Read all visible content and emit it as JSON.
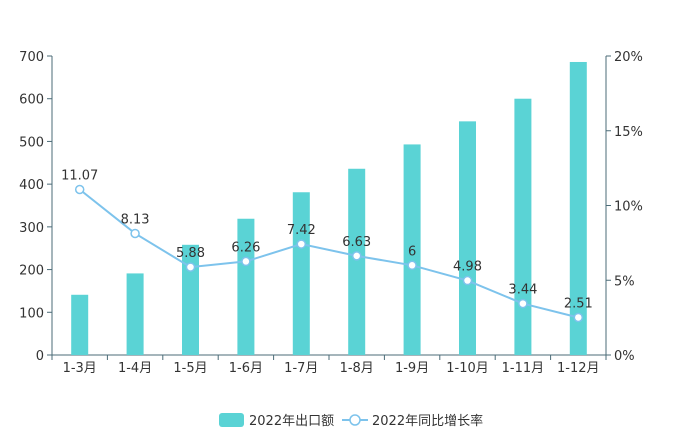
{
  "chart_data": {
    "type": "bar",
    "categories": [
      "1-3月",
      "1-4月",
      "1-5月",
      "1-6月",
      "1-7月",
      "1-8月",
      "1-9月",
      "1-10月",
      "1-11月",
      "1-12月"
    ],
    "series": [
      {
        "name": "2022年出口额",
        "type": "bar",
        "axis": "left",
        "values": [
          141,
          191,
          258,
          319,
          381,
          436,
          493,
          547,
          600,
          686
        ],
        "color": "#5ad3d5"
      },
      {
        "name": "2022年同比增长率",
        "type": "line",
        "axis": "right",
        "values": [
          11.07,
          8.13,
          5.88,
          6.26,
          7.42,
          6.63,
          6,
          4.98,
          3.44,
          2.51
        ],
        "labels": [
          "11.07",
          "8.13",
          "5.88",
          "6.26",
          "7.42",
          "6.63",
          "6",
          "4.98",
          "3.44",
          "2.51"
        ],
        "color": "#7dc3ec"
      }
    ],
    "y_left": {
      "min": 0,
      "max": 700,
      "ticks": [
        "0",
        "100",
        "200",
        "300",
        "400",
        "500",
        "600",
        "700"
      ]
    },
    "y_right": {
      "min": 0,
      "max": 20,
      "ticks": [
        "0%",
        "5%",
        "10%",
        "15%",
        "20%"
      ]
    },
    "grid": false,
    "legend_position": "bottom-center"
  }
}
